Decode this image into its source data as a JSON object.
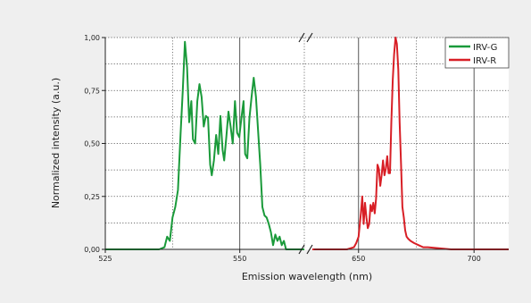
{
  "chart_data": {
    "type": "line",
    "title": "",
    "xlabel": "Emission wavelength (nm)",
    "ylabel": "Normalized intensity (a.u.)",
    "ylim": [
      0,
      1
    ],
    "y_ticks": [
      "0,00",
      "0,25",
      "0,50",
      "0,75",
      "1,00"
    ],
    "grid": "dotted",
    "legend_position": "top-right",
    "broken_x_axis": true,
    "x_segments": [
      {
        "xlim": [
          525,
          562
        ],
        "ticks": [
          525,
          550
        ],
        "tick_labels": [
          "525",
          "550"
        ]
      },
      {
        "xlim": [
          630,
          715
        ],
        "ticks": [
          650,
          700
        ],
        "tick_labels": [
          "650",
          "700"
        ]
      }
    ],
    "series": [
      {
        "name": "IRV-G",
        "color": "#1a9a3a",
        "segment": 0,
        "points": [
          [
            525,
            0
          ],
          [
            530,
            0
          ],
          [
            535,
            0
          ],
          [
            536,
            0.01
          ],
          [
            536.5,
            0.06
          ],
          [
            537,
            0.04
          ],
          [
            537.5,
            0.15
          ],
          [
            538,
            0.2
          ],
          [
            538.5,
            0.28
          ],
          [
            539,
            0.55
          ],
          [
            539.4,
            0.75
          ],
          [
            539.8,
            0.98
          ],
          [
            540.2,
            0.86
          ],
          [
            540.6,
            0.6
          ],
          [
            541,
            0.7
          ],
          [
            541.3,
            0.52
          ],
          [
            541.7,
            0.5
          ],
          [
            542.1,
            0.7
          ],
          [
            542.5,
            0.78
          ],
          [
            542.9,
            0.72
          ],
          [
            543.3,
            0.58
          ],
          [
            543.7,
            0.63
          ],
          [
            544.1,
            0.62
          ],
          [
            544.5,
            0.4
          ],
          [
            544.8,
            0.35
          ],
          [
            545.2,
            0.42
          ],
          [
            545.6,
            0.54
          ],
          [
            546,
            0.45
          ],
          [
            546.4,
            0.63
          ],
          [
            546.8,
            0.47
          ],
          [
            547.1,
            0.42
          ],
          [
            547.5,
            0.53
          ],
          [
            547.9,
            0.65
          ],
          [
            548.3,
            0.58
          ],
          [
            548.7,
            0.5
          ],
          [
            549.1,
            0.7
          ],
          [
            549.5,
            0.55
          ],
          [
            549.9,
            0.53
          ],
          [
            550.3,
            0.62
          ],
          [
            550.7,
            0.7
          ],
          [
            551,
            0.45
          ],
          [
            551.4,
            0.43
          ],
          [
            551.8,
            0.62
          ],
          [
            552.2,
            0.72
          ],
          [
            552.6,
            0.81
          ],
          [
            553,
            0.72
          ],
          [
            553.4,
            0.56
          ],
          [
            553.8,
            0.4
          ],
          [
            554.2,
            0.2
          ],
          [
            554.6,
            0.16
          ],
          [
            555,
            0.15
          ],
          [
            555.4,
            0.12
          ],
          [
            555.8,
            0.08
          ],
          [
            556.2,
            0.02
          ],
          [
            556.6,
            0.07
          ],
          [
            557,
            0.04
          ],
          [
            557.4,
            0.06
          ],
          [
            557.8,
            0.02
          ],
          [
            558.2,
            0.04
          ],
          [
            558.6,
            0.0
          ],
          [
            560,
            0
          ],
          [
            562,
            0
          ]
        ]
      },
      {
        "name": "IRV-R",
        "color": "#d81f26",
        "segment": 1,
        "points": [
          [
            630,
            0
          ],
          [
            640,
            0
          ],
          [
            645,
            0
          ],
          [
            648,
            0.01
          ],
          [
            649,
            0.03
          ],
          [
            650,
            0.06
          ],
          [
            651,
            0.17
          ],
          [
            651.6,
            0.25
          ],
          [
            652.2,
            0.12
          ],
          [
            652.8,
            0.22
          ],
          [
            653.4,
            0.15
          ],
          [
            654,
            0.1
          ],
          [
            654.6,
            0.12
          ],
          [
            655.2,
            0.21
          ],
          [
            655.8,
            0.18
          ],
          [
            656.4,
            0.22
          ],
          [
            657,
            0.17
          ],
          [
            657.6,
            0.24
          ],
          [
            658.2,
            0.4
          ],
          [
            658.8,
            0.38
          ],
          [
            659.4,
            0.3
          ],
          [
            660,
            0.35
          ],
          [
            660.6,
            0.42
          ],
          [
            661.2,
            0.35
          ],
          [
            661.8,
            0.38
          ],
          [
            662.4,
            0.44
          ],
          [
            663,
            0.36
          ],
          [
            663.6,
            0.36
          ],
          [
            664.2,
            0.6
          ],
          [
            664.8,
            0.8
          ],
          [
            665.4,
            0.92
          ],
          [
            666,
            1.0
          ],
          [
            666.6,
            0.97
          ],
          [
            667.2,
            0.85
          ],
          [
            667.8,
            0.6
          ],
          [
            668.4,
            0.4
          ],
          [
            669,
            0.2
          ],
          [
            669.6,
            0.15
          ],
          [
            670.2,
            0.09
          ],
          [
            670.8,
            0.06
          ],
          [
            671.5,
            0.05
          ],
          [
            672.5,
            0.04
          ],
          [
            674,
            0.03
          ],
          [
            676,
            0.02
          ],
          [
            678,
            0.01
          ],
          [
            680,
            0.01
          ],
          [
            690,
            0
          ],
          [
            700,
            0
          ],
          [
            715,
            0
          ]
        ]
      }
    ]
  }
}
